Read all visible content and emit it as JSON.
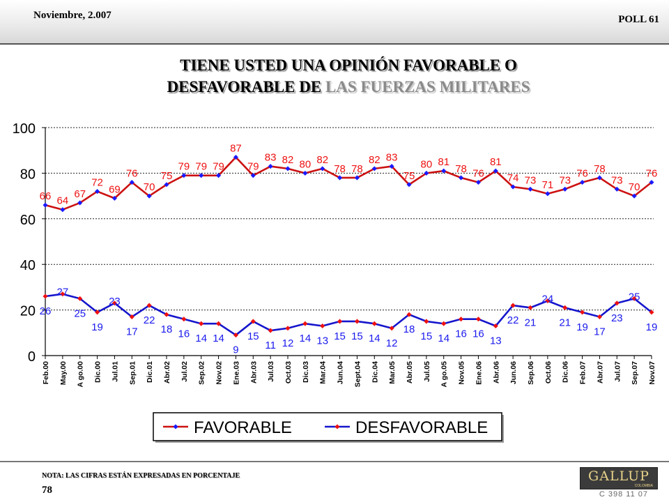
{
  "header": {
    "date": "Noviembre, 2.007",
    "poll": "POLL 61"
  },
  "title": {
    "line1": "TIENE USTED UNA OPINIÓN FAVORABLE O",
    "line2a": "DESFAVORABLE DE ",
    "line2b": "LAS FUERZAS MILITARES"
  },
  "chart_data": {
    "type": "line",
    "categories": [
      "Feb.00",
      "May.00",
      "A go.00",
      "Dic.00",
      "Jul.01",
      "Sep.01",
      "Dic.01",
      "Abr.02",
      "Jul.02",
      "Sep.02",
      "Nov.02",
      "Ene.03",
      "Abr.03",
      "Jul.03",
      "Oct.03",
      "Dic.03",
      "Mar.04",
      "Jun.04",
      "Sept.04",
      "Dic.04",
      "Mar.05",
      "Abr.05",
      "Jul.05",
      "A go.05",
      "Nov.05",
      "Ene.06",
      "Abr.06",
      "Jun.06",
      "Sep.06",
      "Oct.06",
      "Dic.06",
      "Feb.07",
      "Abr.07",
      "Jul.07",
      "Sep.07",
      "Nov.07"
    ],
    "series": [
      {
        "name": "FAVORABLE",
        "color": "#dd1111",
        "line_color": "#cc1111",
        "marker_color": "#1a1aff",
        "label_color": "#ee1111",
        "values": [
          66,
          64,
          67,
          72,
          69,
          76,
          70,
          75,
          79,
          79,
          79,
          87,
          79,
          83,
          82,
          80,
          82,
          78,
          78,
          82,
          83,
          75,
          80,
          81,
          78,
          76,
          81,
          74,
          73,
          71,
          73,
          76,
          78,
          73,
          70,
          76
        ]
      },
      {
        "name": "DESFAVORABLE",
        "color": "#1111cc",
        "line_color": "#1515cc",
        "marker_color": "#ee1111",
        "label_color": "#1a1aee",
        "values": [
          26,
          27,
          25,
          19,
          23,
          17,
          22,
          18,
          16,
          14,
          14,
          9,
          15,
          11,
          12,
          14,
          13,
          15,
          15,
          14,
          12,
          18,
          15,
          14,
          16,
          16,
          13,
          22,
          21,
          24,
          21,
          19,
          17,
          23,
          25,
          19
        ]
      }
    ],
    "ylim": [
      0,
      100
    ],
    "yticks": [
      0,
      20,
      40,
      60,
      80,
      100
    ],
    "grid": true,
    "legend": "bottom-center",
    "xlabel": "",
    "ylabel": ""
  },
  "footer": {
    "note": "NOTA: LAS CIFRAS ESTÁN EXPRESADAS EN PORCENTAJE",
    "page": "78",
    "logo": "GALLUP",
    "logo_sub": "COLOMBIA",
    "code": "C 398 11 07"
  }
}
